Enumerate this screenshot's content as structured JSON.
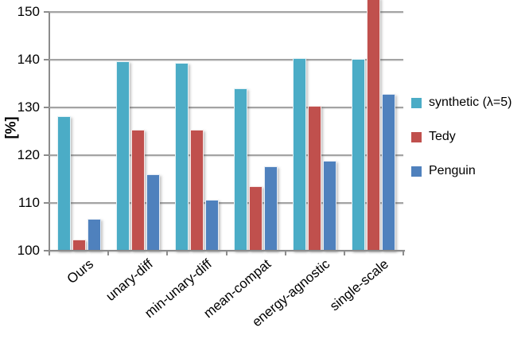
{
  "chart_data": {
    "type": "bar",
    "title": "",
    "ylabel": "[%]",
    "xlabel": "",
    "ylim": [
      100,
      150
    ],
    "yticks": [
      100,
      110,
      120,
      130,
      140,
      150
    ],
    "grid": true,
    "legend_position": "right",
    "categories": [
      "Ours",
      "unary-diff",
      "min-unary-diff",
      "mean-compat",
      "energy-agnostic",
      "single-scale"
    ],
    "series": [
      {
        "name": "synthetic (λ=5)",
        "color": "#4BACC6",
        "values": [
          128.1,
          139.6,
          139.4,
          134.0,
          140.4,
          140.2
        ]
      },
      {
        "name": "Tedy",
        "color": "#C0504D",
        "values": [
          102.3,
          125.4,
          125.4,
          113.5,
          130.3,
          153.0
        ]
      },
      {
        "name": "Penguin",
        "color": "#4F81BD",
        "values": [
          106.7,
          116.0,
          110.6,
          117.7,
          118.9,
          132.8
        ]
      }
    ],
    "notes": "Tedy value at single-scale exceeds the y-axis maximum (150) and is clipped at the top of the plot",
    "colors": {
      "gridline": "#a3a3a3",
      "axis": "#8c8c8c",
      "text": "#000000"
    }
  }
}
